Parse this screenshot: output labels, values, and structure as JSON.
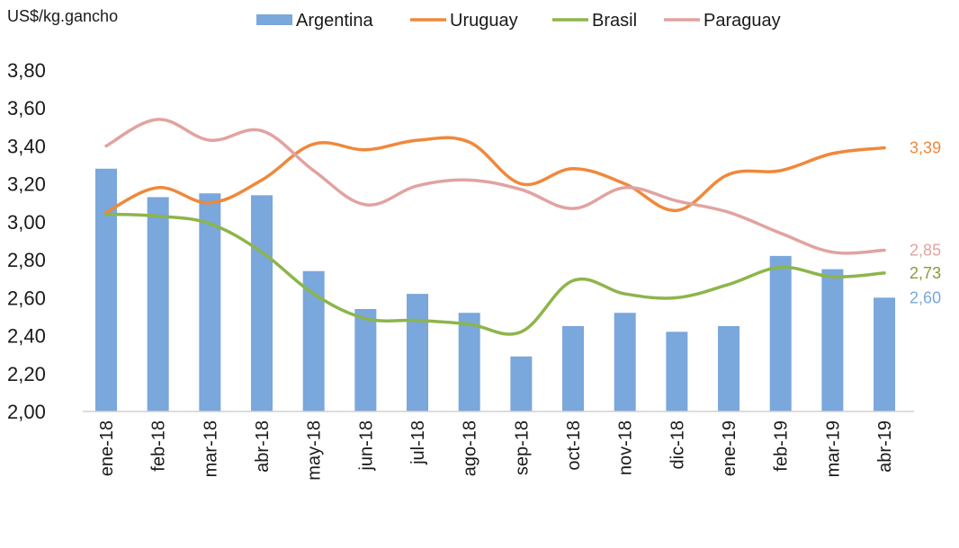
{
  "chart_data": {
    "type": "bar+line",
    "ylabel": "US$/kg.gancho",
    "ylim": [
      2.0,
      3.8
    ],
    "yticks": [
      "2,00",
      "2,20",
      "2,40",
      "2,60",
      "2,80",
      "3,00",
      "3,20",
      "3,40",
      "3,60",
      "3,80"
    ],
    "ytick_values": [
      2.0,
      2.2,
      2.4,
      2.6,
      2.8,
      3.0,
      3.2,
      3.4,
      3.6,
      3.8
    ],
    "categories": [
      "ene-18",
      "feb-18",
      "mar-18",
      "abr-18",
      "may-18",
      "jun-18",
      "jul-18",
      "ago-18",
      "sep-18",
      "oct-18",
      "nov-18",
      "dic-18",
      "ene-19",
      "feb-19",
      "mar-19",
      "abr-19"
    ],
    "legend_position": "top",
    "series": [
      {
        "name": "Argentina",
        "kind": "bar",
        "color": "#7aa7dc",
        "values": [
          3.28,
          3.13,
          3.15,
          3.14,
          2.74,
          2.54,
          2.62,
          2.52,
          2.29,
          2.45,
          2.52,
          2.42,
          2.45,
          2.82,
          2.75,
          2.6
        ]
      },
      {
        "name": "Uruguay",
        "kind": "line",
        "color": "#f0883a",
        "values": [
          3.05,
          3.18,
          3.1,
          3.22,
          3.41,
          3.38,
          3.43,
          3.42,
          3.2,
          3.28,
          3.2,
          3.06,
          3.25,
          3.27,
          3.36,
          3.39
        ]
      },
      {
        "name": "Brasil",
        "kind": "line",
        "color": "#8db54a",
        "values": [
          3.04,
          3.03,
          2.99,
          2.84,
          2.62,
          2.49,
          2.48,
          2.46,
          2.42,
          2.69,
          2.62,
          2.6,
          2.67,
          2.76,
          2.71,
          2.73
        ]
      },
      {
        "name": "Paraguay",
        "kind": "line",
        "color": "#e1a3a0",
        "values": [
          3.4,
          3.54,
          3.43,
          3.48,
          3.27,
          3.09,
          3.19,
          3.22,
          3.17,
          3.07,
          3.18,
          3.11,
          3.05,
          2.94,
          2.84,
          2.85
        ]
      }
    ],
    "end_labels": [
      {
        "series": "Uruguay",
        "text": "3,39",
        "color": "#f0883a"
      },
      {
        "series": "Paraguay",
        "text": "2,85",
        "color": "#e1a3a0"
      },
      {
        "series": "Brasil",
        "text": "2,73",
        "color": "#8a9a3a"
      },
      {
        "series": "Argentina",
        "text": "2,60",
        "color": "#7aa7dc"
      }
    ]
  }
}
